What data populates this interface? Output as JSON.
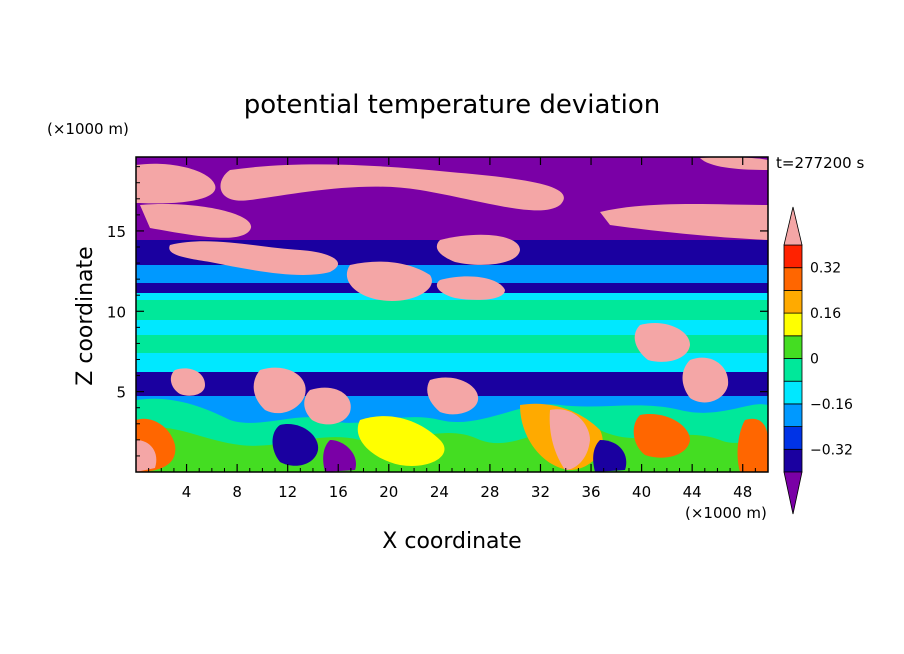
{
  "chart_data": {
    "type": "heatmap",
    "title": "potential temperature deviation",
    "xlabel": "X coordinate",
    "ylabel": "Z coordinate",
    "x_unit": "(×1000 m)",
    "y_unit": "(×1000 m)",
    "time_label": "t=277200 s",
    "xlim": [
      0,
      50
    ],
    "ylim": [
      0,
      19.6
    ],
    "x_ticks": [
      4,
      8,
      12,
      16,
      20,
      24,
      28,
      32,
      36,
      40,
      44,
      48
    ],
    "y_ticks": [
      5,
      10,
      15
    ],
    "colorbar": {
      "levels": [
        -0.4,
        -0.32,
        -0.24,
        -0.16,
        -0.08,
        0,
        0.08,
        0.16,
        0.24,
        0.32,
        0.4
      ],
      "tick_labels": [
        "0.32",
        "0.16",
        "0",
        "−0.16",
        "−0.32"
      ],
      "tick_values": [
        0.32,
        0.16,
        0,
        -0.16,
        -0.32
      ],
      "colors": [
        "#7a00a6",
        "#1a00a0",
        "#0033e6",
        "#0099ff",
        "#00e8ff",
        "#00e89a",
        "#44dd22",
        "#ffff00",
        "#ffaa00",
        "#ff6600",
        "#ff2200",
        "#f4a6a6"
      ],
      "extend": "both"
    }
  }
}
